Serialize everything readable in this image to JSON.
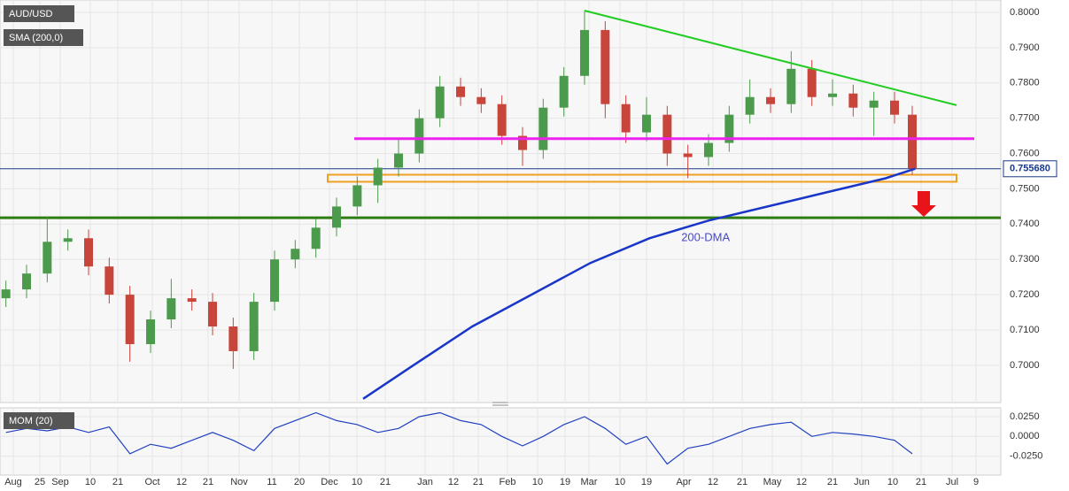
{
  "chart_data": [
    {
      "type": "candlestick",
      "title": "AUD/USD",
      "xlim": [
        0,
        339
      ],
      "ylim": [
        0.6902,
        0.803
      ],
      "yticks": [
        {
          "value": 0.7,
          "label": "0.7000"
        },
        {
          "value": 0.71,
          "label": "0.7100"
        },
        {
          "value": 0.72,
          "label": "0.7200"
        },
        {
          "value": 0.73,
          "label": "0.7300"
        },
        {
          "value": 0.74,
          "label": "0.7400"
        },
        {
          "value": 0.75,
          "label": "0.7500"
        },
        {
          "value": 0.76,
          "label": "0.7600"
        },
        {
          "value": 0.77,
          "label": "0.7700"
        },
        {
          "value": 0.78,
          "label": "0.7800"
        },
        {
          "value": 0.79,
          "label": "0.7900"
        },
        {
          "value": 0.8,
          "label": "0.8000"
        }
      ],
      "up_color": "#4c9a4c",
      "down_color": "#c8453c",
      "x": [
        2,
        9,
        16,
        23,
        30,
        37,
        44,
        51,
        58,
        65,
        72,
        79,
        86,
        93,
        100,
        107,
        114,
        121,
        128,
        135,
        142,
        149,
        156,
        163,
        170,
        177,
        184,
        191,
        198,
        205,
        212,
        219,
        226,
        233,
        240,
        247,
        254,
        261,
        268,
        275,
        282,
        289,
        296,
        303,
        309
      ],
      "open": [
        0.719,
        0.7215,
        0.726,
        0.735,
        0.736,
        0.728,
        0.72,
        0.706,
        0.713,
        0.719,
        0.718,
        0.711,
        0.704,
        0.718,
        0.73,
        0.733,
        0.739,
        0.745,
        0.751,
        0.756,
        0.76,
        0.77,
        0.779,
        0.776,
        0.774,
        0.765,
        0.761,
        0.773,
        0.782,
        0.795,
        0.774,
        0.766,
        0.771,
        0.76,
        0.759,
        0.763,
        0.771,
        0.776,
        0.774,
        0.784,
        0.776,
        0.777,
        0.773,
        0.775,
        0.771
      ],
      "high": [
        0.724,
        0.7285,
        0.742,
        0.7385,
        0.7385,
        0.7305,
        0.7225,
        0.7155,
        0.7245,
        0.7215,
        0.7205,
        0.7135,
        0.7205,
        0.7325,
        0.7355,
        0.7415,
        0.7475,
        0.7535,
        0.7585,
        0.764,
        0.7725,
        0.782,
        0.7815,
        0.7785,
        0.7765,
        0.7675,
        0.7755,
        0.7845,
        0.8005,
        0.7975,
        0.7765,
        0.776,
        0.7735,
        0.7625,
        0.7655,
        0.7735,
        0.781,
        0.7785,
        0.789,
        0.7865,
        0.781,
        0.7795,
        0.7775,
        0.7775,
        0.7735
      ],
      "low": [
        0.7165,
        0.719,
        0.7235,
        0.7325,
        0.7255,
        0.7175,
        0.701,
        0.7035,
        0.7105,
        0.7155,
        0.7085,
        0.699,
        0.7015,
        0.7155,
        0.7275,
        0.7305,
        0.7365,
        0.7425,
        0.746,
        0.7535,
        0.7575,
        0.7675,
        0.7735,
        0.7715,
        0.7625,
        0.7565,
        0.7585,
        0.7705,
        0.7795,
        0.77,
        0.763,
        0.7635,
        0.7565,
        0.753,
        0.7565,
        0.7605,
        0.7685,
        0.7715,
        0.7715,
        0.7735,
        0.7735,
        0.7705,
        0.765,
        0.7685,
        0.754
      ],
      "close": [
        0.7215,
        0.726,
        0.735,
        0.736,
        0.728,
        0.72,
        0.706,
        0.713,
        0.719,
        0.718,
        0.711,
        0.704,
        0.718,
        0.73,
        0.733,
        0.739,
        0.745,
        0.751,
        0.756,
        0.76,
        0.77,
        0.779,
        0.776,
        0.774,
        0.765,
        0.761,
        0.773,
        0.782,
        0.795,
        0.774,
        0.766,
        0.771,
        0.76,
        0.759,
        0.763,
        0.771,
        0.776,
        0.774,
        0.784,
        0.776,
        0.777,
        0.773,
        0.775,
        0.771,
        0.7557
      ],
      "sma": {
        "name": "SMA (200,0)",
        "color": "#1a36c8",
        "x": [
          123,
          140,
          160,
          180,
          200,
          220,
          240,
          260,
          280,
          300,
          310
        ],
        "values": [
          0.6905,
          0.7,
          0.711,
          0.72,
          0.729,
          0.736,
          0.741,
          0.745,
          0.749,
          0.753,
          0.7557
        ]
      },
      "trendline": {
        "color": "#22cc22",
        "x": [
          198,
          324
        ],
        "values": [
          0.8005,
          0.7737
        ]
      },
      "resistance": {
        "color": "#ee22ee",
        "x": [
          120,
          330
        ],
        "values": [
          0.7642,
          0.7642
        ]
      },
      "support_zone": {
        "color": "#f0a020",
        "x": [
          111,
          324
        ],
        "values": [
          0.752,
          0.754
        ]
      },
      "support_line": {
        "color": "#2e7d12",
        "value": 0.7418
      },
      "last_price": {
        "color": "#1a3a8a",
        "value": 0.75568,
        "label": "0.755680"
      },
      "annotations": [
        {
          "text": "200-DMA",
          "x": 239,
          "y": 0.736
        }
      ]
    },
    {
      "type": "line",
      "title": "MOM (20)",
      "xlim": [
        0,
        339
      ],
      "ylim": [
        -0.0467,
        0.0339
      ],
      "yticks": [
        {
          "value": 0.025,
          "label": "0.0250"
        },
        {
          "value": 0,
          "label": "0.0000"
        },
        {
          "value": -0.025,
          "label": "-0.0250"
        }
      ],
      "xticks": [
        {
          "value": 4.5,
          "label": "Aug"
        },
        {
          "value": 13.5,
          "label": "25"
        },
        {
          "value": 20.4,
          "label": "Sep"
        },
        {
          "value": 30.6,
          "label": "10"
        },
        {
          "value": 39.9,
          "label": "21"
        },
        {
          "value": 51.6,
          "label": "Oct"
        },
        {
          "value": 61.5,
          "label": "12"
        },
        {
          "value": 70.5,
          "label": "21"
        },
        {
          "value": 81,
          "label": "Nov"
        },
        {
          "value": 92.1,
          "label": "11"
        },
        {
          "value": 101.4,
          "label": "20"
        },
        {
          "value": 111.6,
          "label": "Dec"
        },
        {
          "value": 120.9,
          "label": "10"
        },
        {
          "value": 130.5,
          "label": "21"
        },
        {
          "value": 144,
          "label": "Jan"
        },
        {
          "value": 153.6,
          "label": "12"
        },
        {
          "value": 162,
          "label": "21"
        },
        {
          "value": 171.9,
          "label": "Feb"
        },
        {
          "value": 182.1,
          "label": "10"
        },
        {
          "value": 191.4,
          "label": "19"
        },
        {
          "value": 199.5,
          "label": "Mar"
        },
        {
          "value": 210,
          "label": "10"
        },
        {
          "value": 219,
          "label": "19"
        },
        {
          "value": 231.6,
          "label": "Apr"
        },
        {
          "value": 241.5,
          "label": "12"
        },
        {
          "value": 251.4,
          "label": "21"
        },
        {
          "value": 261.6,
          "label": "May"
        },
        {
          "value": 271.5,
          "label": "12"
        },
        {
          "value": 282,
          "label": "21"
        },
        {
          "value": 291.9,
          "label": "Jun"
        },
        {
          "value": 302.4,
          "label": "10"
        },
        {
          "value": 312,
          "label": "21"
        },
        {
          "value": 322.5,
          "label": "Jul"
        },
        {
          "value": 330.6,
          "label": "9"
        }
      ],
      "series": [
        {
          "name": "MOM (20)",
          "color": "#2040c0",
          "x": [
            2,
            9,
            16,
            23,
            30,
            37,
            44,
            51,
            58,
            65,
            72,
            79,
            86,
            93,
            100,
            107,
            114,
            121,
            128,
            135,
            142,
            149,
            156,
            163,
            170,
            177,
            184,
            191,
            198,
            205,
            212,
            219,
            226,
            233,
            240,
            247,
            254,
            261,
            268,
            275,
            282,
            289,
            296,
            303,
            309
          ],
          "values": [
            0.005,
            0.01,
            0.007,
            0.012,
            0.005,
            0.012,
            -0.022,
            -0.01,
            -0.015,
            -0.005,
            0.005,
            -0.005,
            -0.018,
            0.01,
            0.02,
            0.03,
            0.02,
            0.015,
            0.005,
            0.01,
            0.025,
            0.03,
            0.02,
            0.015,
            0,
            -0.012,
            0,
            0.015,
            0.025,
            0.01,
            -0.01,
            0,
            -0.035,
            -0.015,
            -0.01,
            0,
            0.01,
            0.015,
            0.018,
            0,
            0.005,
            0.003,
            0,
            -0.005,
            -0.022
          ]
        }
      ]
    }
  ]
}
